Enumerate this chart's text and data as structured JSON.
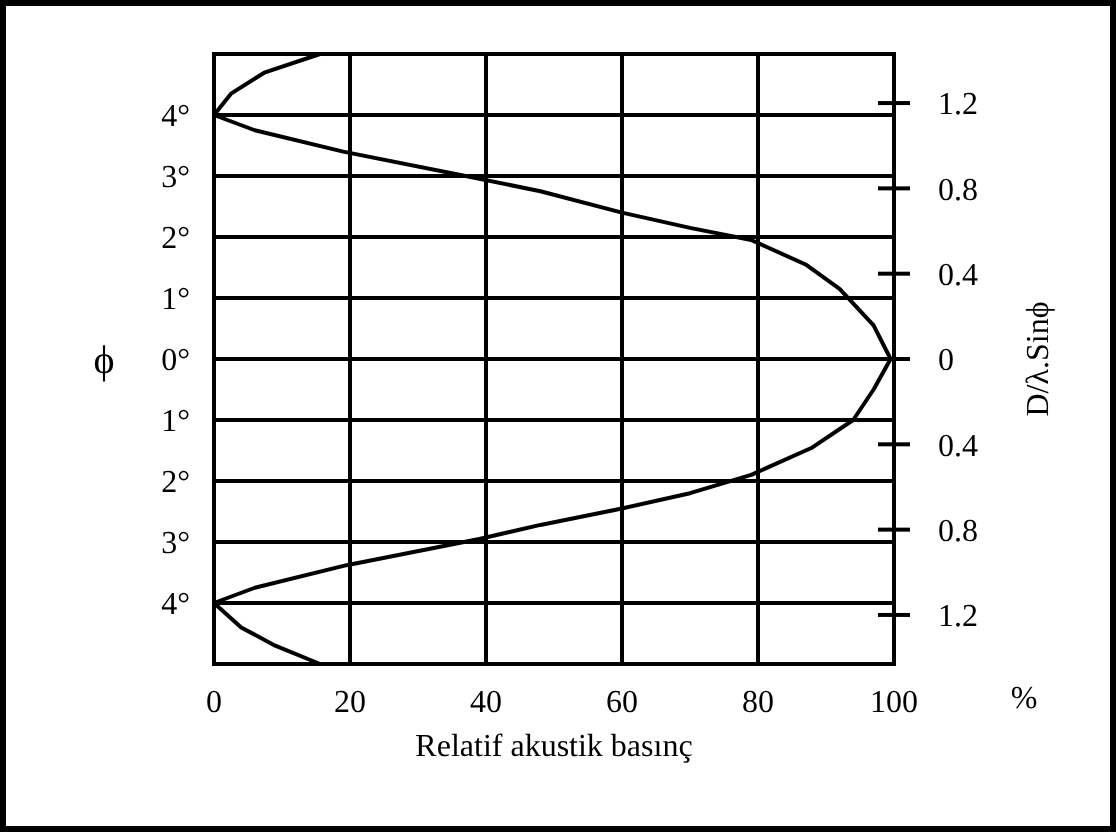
{
  "chart_data": {
    "type": "line",
    "xlabel": "Relatif akustik basınç",
    "ylabel": "ϕ",
    "y2label": "D/λ.Sinϕ",
    "annotations": [
      "%"
    ],
    "xlim": [
      0,
      100
    ],
    "xticks": [
      0,
      20,
      40,
      60,
      80,
      100
    ],
    "ylim": [
      -5,
      5
    ],
    "yticks": [
      {
        "value": 4,
        "label": "4°"
      },
      {
        "value": 3,
        "label": "3°"
      },
      {
        "value": 2,
        "label": "2°"
      },
      {
        "value": 1,
        "label": "1°"
      },
      {
        "value": 0,
        "label": "0°"
      },
      {
        "value": -1,
        "label": "1°"
      },
      {
        "value": -2,
        "label": "2°"
      },
      {
        "value": -3,
        "label": "3°"
      },
      {
        "value": -4,
        "label": "4°"
      }
    ],
    "y2lim": [
      -1.43,
      1.43
    ],
    "y2ticks": [
      {
        "value": 1.2,
        "label": "1.2"
      },
      {
        "value": 0.8,
        "label": "0.8"
      },
      {
        "value": 0.4,
        "label": "0.4"
      },
      {
        "value": 0,
        "label": "0"
      },
      {
        "value": -0.4,
        "label": "0.4"
      },
      {
        "value": -0.8,
        "label": "0.8"
      },
      {
        "value": -1.2,
        "label": "1.2"
      }
    ],
    "grid": true,
    "marker": "none",
    "line_style": "solid",
    "series": [
      {
        "color": "#000000",
        "x": [
          15.6,
          7.5,
          2.5,
          0,
          6,
          19,
          37,
          48,
          60,
          70,
          79,
          87,
          92,
          97,
          99.5,
          97,
          94,
          88,
          79,
          70,
          60,
          48,
          39,
          19.5,
          6,
          0,
          4,
          9,
          15.6
        ],
        "values": [
          5,
          4.7,
          4.35,
          4,
          3.75,
          3.4,
          3,
          2.75,
          2.4,
          2.15,
          1.95,
          1.55,
          1.15,
          0.55,
          0,
          -0.5,
          -1,
          -1.45,
          -1.9,
          -2.2,
          -2.45,
          -2.72,
          -2.95,
          -3.38,
          -3.75,
          -4,
          -4.4,
          -4.7,
          -5
        ]
      }
    ]
  }
}
